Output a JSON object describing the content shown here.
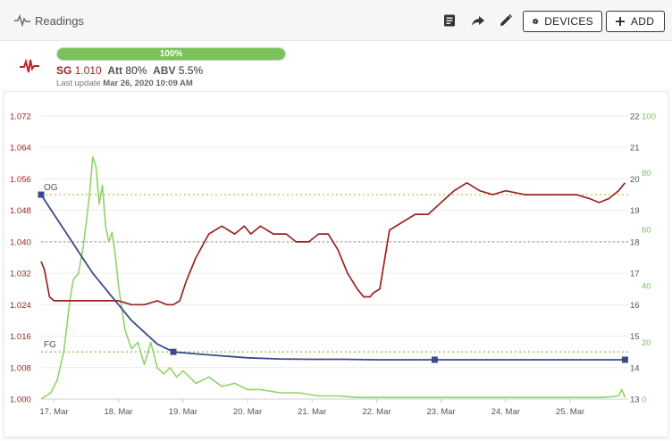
{
  "header": {
    "title": "Readings",
    "devices_label": "DEVICES",
    "add_label": "ADD"
  },
  "status": {
    "progress": {
      "percent": 100,
      "label": "100%"
    },
    "sg_label": "SG",
    "sg_value": "1.010",
    "att_label": "Att",
    "att_value": "80%",
    "abv_label": "ABV",
    "abv_value": "5.5%",
    "last_update_prefix": "Last update",
    "last_update_value": "Mar 26, 2020 10:09 AM"
  },
  "colors": {
    "gravity": "#9a2222",
    "temperature": "#8fd468",
    "attenuation": "#3d4a8a",
    "og_line": "#d6c23a",
    "fg_line": "#98c24a",
    "mid_line": "#aaaaaa",
    "progress": "#7ac35a",
    "accent_temp_axis": "#7ac35a"
  },
  "chart_data": {
    "type": "line",
    "x_axis": {
      "ticks": [
        "17. Mar",
        "18. Mar",
        "19. Mar",
        "20. Mar",
        "21. Mar",
        "22. Mar",
        "23. Mar",
        "24. Mar",
        "25. Mar"
      ],
      "range": [
        16.8,
        25.9
      ]
    },
    "y_axes": [
      {
        "id": "gravity",
        "side": "left",
        "range": [
          1.0,
          1.072
        ],
        "ticks": [
          "1.000",
          "1.008",
          "1.016",
          "1.024",
          "1.032",
          "1.040",
          "1.048",
          "1.056",
          "1.064",
          "1.072"
        ]
      },
      {
        "id": "temp",
        "side": "right",
        "range": [
          13,
          22
        ],
        "ticks": [
          "13",
          "14",
          "15",
          "16",
          "17",
          "18",
          "19",
          "20",
          "21",
          "22"
        ]
      },
      {
        "id": "att",
        "side": "right-outer",
        "range": [
          0,
          100
        ],
        "ticks": [
          "0",
          "20",
          "40",
          "60",
          "80",
          "100"
        ]
      }
    ],
    "annotations": [
      {
        "label": "OG",
        "y": 1.052,
        "axis": "gravity"
      },
      {
        "label": "FG",
        "y": 1.012,
        "axis": "gravity"
      },
      {
        "label": "",
        "y": 1.04,
        "axis": "gravity"
      }
    ],
    "series": [
      {
        "id": "gravity",
        "axis": "gravity",
        "x": [
          16.8,
          16.85,
          16.93,
          17.0,
          17.1,
          17.2,
          17.4,
          17.6,
          17.8,
          18.0,
          18.2,
          18.4,
          18.6,
          18.75,
          18.85,
          18.95,
          19.05,
          19.2,
          19.4,
          19.6,
          19.8,
          19.95,
          20.05,
          20.2,
          20.4,
          20.6,
          20.75,
          20.95,
          21.1,
          21.25,
          21.4,
          21.55,
          21.7,
          21.8,
          21.9,
          21.95,
          22.05,
          22.2,
          22.4,
          22.6,
          22.8,
          23.0,
          23.2,
          23.4,
          23.6,
          23.8,
          24.0,
          24.3,
          24.6,
          24.9,
          25.1,
          25.3,
          25.45,
          25.6,
          25.75,
          25.85
        ],
        "y": [
          1.035,
          1.033,
          1.026,
          1.025,
          1.025,
          1.025,
          1.025,
          1.025,
          1.025,
          1.025,
          1.024,
          1.024,
          1.025,
          1.024,
          1.024,
          1.025,
          1.03,
          1.036,
          1.042,
          1.044,
          1.042,
          1.044,
          1.042,
          1.044,
          1.042,
          1.042,
          1.04,
          1.04,
          1.042,
          1.042,
          1.038,
          1.032,
          1.028,
          1.026,
          1.026,
          1.027,
          1.028,
          1.043,
          1.045,
          1.047,
          1.047,
          1.05,
          1.053,
          1.055,
          1.053,
          1.052,
          1.053,
          1.052,
          1.052,
          1.052,
          1.052,
          1.051,
          1.05,
          1.051,
          1.053,
          1.055
        ]
      },
      {
        "id": "temperature",
        "axis": "temp",
        "x": [
          16.8,
          16.95,
          17.05,
          17.15,
          17.25,
          17.3,
          17.38,
          17.45,
          17.5,
          17.55,
          17.6,
          17.65,
          17.7,
          17.75,
          17.8,
          17.85,
          17.9,
          17.95,
          18.0,
          18.1,
          18.2,
          18.3,
          18.4,
          18.5,
          18.6,
          18.7,
          18.8,
          18.9,
          19.0,
          19.2,
          19.4,
          19.6,
          19.8,
          20.0,
          20.2,
          20.5,
          20.8,
          21.1,
          21.4,
          21.7,
          22.0,
          22.5,
          23.0,
          23.5,
          24.0,
          24.5,
          25.0,
          25.5,
          25.75,
          25.8,
          25.85
        ],
        "y": [
          13.0,
          13.2,
          13.6,
          14.5,
          16.2,
          16.8,
          17.0,
          17.8,
          18.6,
          19.5,
          20.7,
          20.4,
          19.2,
          19.8,
          18.5,
          18.0,
          18.3,
          17.6,
          16.6,
          15.2,
          14.6,
          14.8,
          14.1,
          14.8,
          14.0,
          13.8,
          14.0,
          13.7,
          13.9,
          13.5,
          13.7,
          13.4,
          13.5,
          13.3,
          13.3,
          13.2,
          13.2,
          13.1,
          13.1,
          13.05,
          13.05,
          13.05,
          13.05,
          13.05,
          13.05,
          13.05,
          13.05,
          13.05,
          13.1,
          13.3,
          13.05
        ]
      },
      {
        "id": "attenuation",
        "axis": "gravity",
        "x": [
          16.8,
          17.0,
          17.2,
          17.4,
          17.6,
          17.8,
          18.0,
          18.2,
          18.4,
          18.6,
          18.85,
          19.2,
          19.6,
          20.0,
          20.5,
          21.0,
          21.5,
          22.0,
          22.5,
          22.9,
          23.5,
          24.0,
          24.5,
          25.0,
          25.5,
          25.85
        ],
        "y": [
          1.052,
          1.047,
          1.042,
          1.037,
          1.032,
          1.028,
          1.024,
          1.02,
          1.017,
          1.014,
          1.012,
          1.0115,
          1.011,
          1.0105,
          1.0102,
          1.0101,
          1.0101,
          1.01,
          1.01,
          1.01,
          1.01,
          1.01,
          1.01,
          1.01,
          1.01,
          1.01
        ],
        "markers_x": [
          16.8,
          18.85,
          22.9,
          25.85
        ]
      }
    ]
  }
}
